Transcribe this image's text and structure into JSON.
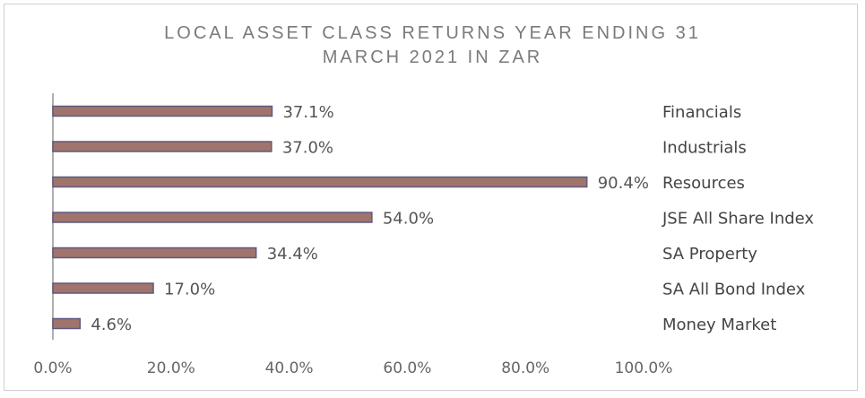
{
  "chart_data": {
    "type": "bar",
    "orientation": "horizontal",
    "title_line1": "LOCAL ASSET CLASS RETURNS YEAR ENDING 31",
    "title_line2": "MARCH 2021 IN ZAR",
    "categories": [
      "Financials",
      "Industrials",
      "Resources",
      "JSE All Share Index",
      "SA Property",
      "SA All Bond Index",
      "Money Market"
    ],
    "values": [
      37.1,
      37.0,
      90.4,
      54.0,
      34.4,
      17.0,
      4.6
    ],
    "value_labels": [
      "37.1%",
      "37.0%",
      "90.4%",
      "54.0%",
      "34.4%",
      "17.0%",
      "4.6%"
    ],
    "xlim": [
      0,
      100
    ],
    "x_ticks": [
      "0.0%",
      "20.0%",
      "40.0%",
      "60.0%",
      "80.0%",
      "100.0%"
    ],
    "grid": false,
    "bar_color": "#a0746d",
    "bar_edge_color": "#5e5a7e",
    "axis_color": "#b0b0b0"
  }
}
